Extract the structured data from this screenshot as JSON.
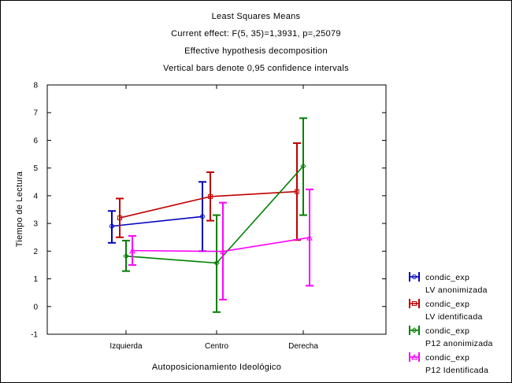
{
  "chart_data": {
    "type": "line",
    "title_lines": [
      "Least Squares Means",
      "Current effect: F(5, 35)=1,3931, p=,25079",
      "Effective hypothesis decomposition",
      "Vertical bars denote 0,95 confidence intervals"
    ],
    "xlabel": "Autoposicionamiento Ideológico",
    "ylabel": "Tiempo de Lectura",
    "categories": [
      "Izquierda",
      "Centro",
      "Derecha"
    ],
    "ylim": [
      -1,
      8
    ],
    "yticks": [
      -1,
      0,
      1,
      2,
      3,
      4,
      5,
      6,
      7,
      8
    ],
    "grid": false,
    "legend_position": "bottom-right",
    "series": [
      {
        "name": "condic_exp",
        "label2": "LV anonimizada",
        "color": "#0000c0",
        "values": [
          2.9,
          3.25,
          null
        ],
        "lower": [
          2.3,
          2.0,
          null
        ],
        "upper": [
          3.45,
          4.5,
          null
        ]
      },
      {
        "name": "condic_exp",
        "label2": "LV identificada",
        "color": "#c00000",
        "values": [
          3.2,
          3.97,
          4.15
        ],
        "lower": [
          2.5,
          3.1,
          2.4
        ],
        "upper": [
          3.9,
          4.85,
          5.9
        ]
      },
      {
        "name": "condic_exp",
        "label2": "P12 anonimizada",
        "color": "#008000",
        "values": [
          1.82,
          1.57,
          5.07
        ],
        "lower": [
          1.28,
          -0.2,
          3.3
        ],
        "upper": [
          2.38,
          3.3,
          6.8
        ]
      },
      {
        "name": "condic_exp",
        "label2": "P12 Identificada",
        "color": "#ff00ff",
        "values": [
          2.02,
          1.99,
          2.49
        ],
        "lower": [
          1.5,
          0.25,
          0.75
        ],
        "upper": [
          2.55,
          3.75,
          4.23
        ]
      }
    ]
  }
}
